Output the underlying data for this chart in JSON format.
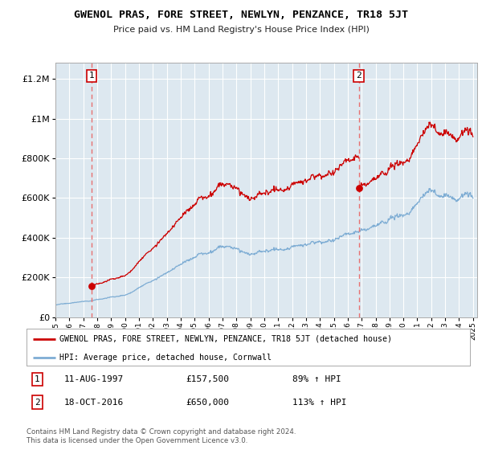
{
  "title": "GWENOL PRAS, FORE STREET, NEWLYN, PENZANCE, TR18 5JT",
  "subtitle": "Price paid vs. HM Land Registry's House Price Index (HPI)",
  "red_label": "GWENOL PRAS, FORE STREET, NEWLYN, PENZANCE, TR18 5JT (detached house)",
  "blue_label": "HPI: Average price, detached house, Cornwall",
  "transaction1_date": "11-AUG-1997",
  "transaction1_price": 157500,
  "transaction1_hpi": "89% ↑ HPI",
  "transaction2_date": "18-OCT-2016",
  "transaction2_price": 650000,
  "transaction2_hpi": "113% ↑ HPI",
  "footer": "Contains HM Land Registry data © Crown copyright and database right 2024.\nThis data is licensed under the Open Government Licence v3.0.",
  "background_color": "#ffffff",
  "plot_bg_color": "#dde8f0",
  "grid_color": "#ffffff",
  "red_color": "#cc0000",
  "blue_color": "#7eadd4",
  "dashed_color": "#e87070",
  "t1": 1997.614,
  "t2": 2016.792,
  "price1": 157500,
  "price2": 650000,
  "ylim": [
    0,
    1280000
  ],
  "yticks": [
    0,
    200000,
    400000,
    600000,
    800000,
    1000000,
    1200000
  ],
  "xlim_start": 1995,
  "xlim_end": 2025.3,
  "n_points": 800,
  "seed": 17
}
